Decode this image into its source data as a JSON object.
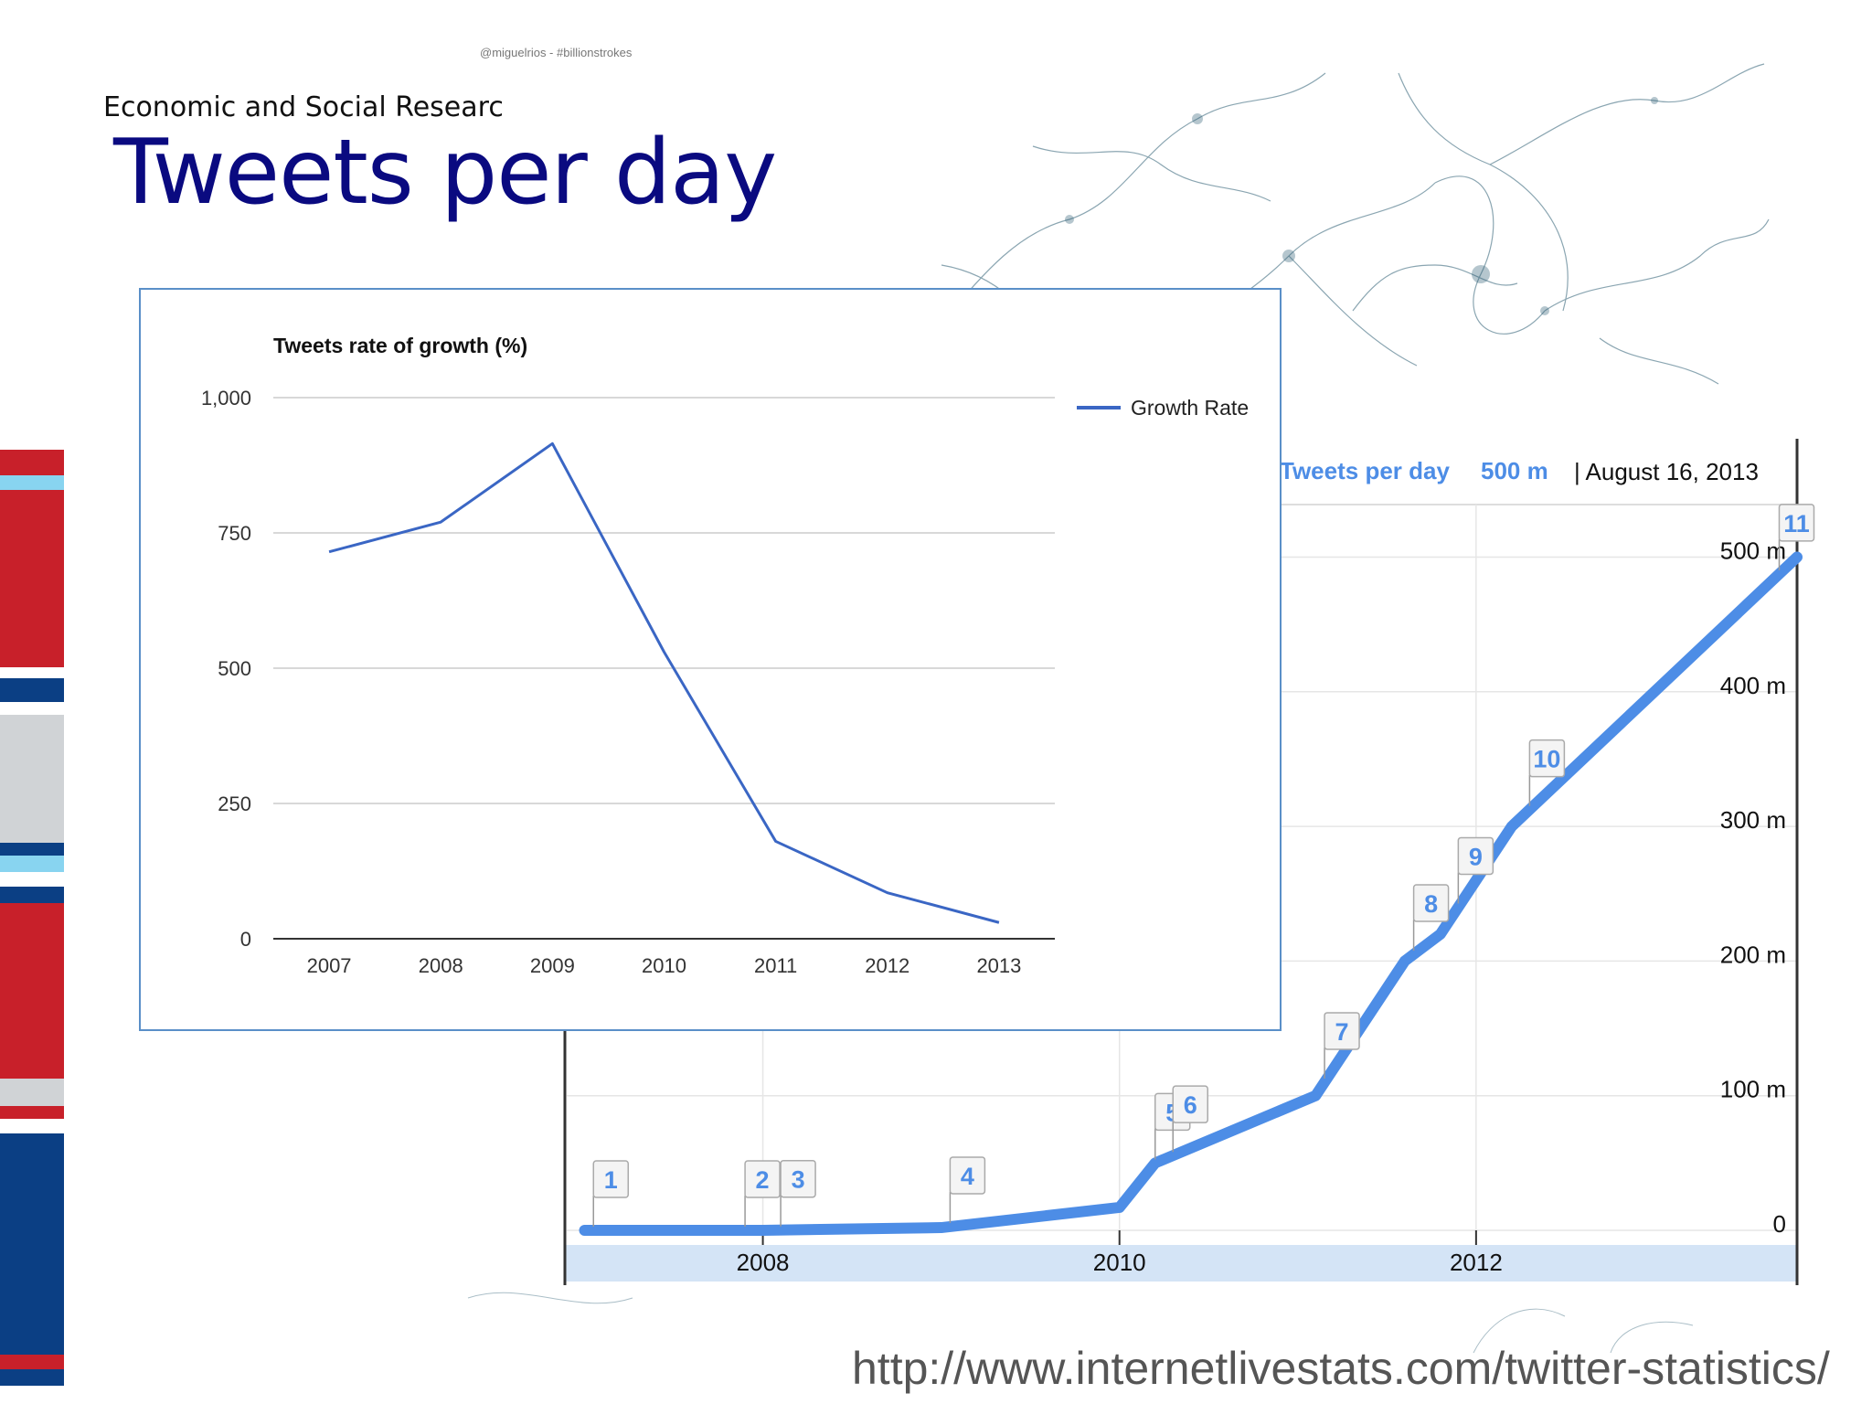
{
  "slide": {
    "credit": "@miguelrios - #billionstrokes",
    "org_text": "Economic and Social Researc",
    "title": "Tweets per day",
    "source_url": "http://www.internetlivestats.com/twitter-statistics/"
  },
  "colors": {
    "title": "#0a0a80",
    "growth_line": "#3a66c4",
    "daily_line": "#4d8de6",
    "band": "#d4e4f6",
    "flag_text": "#4d8de6",
    "stripe_red": "#c8202a",
    "stripe_blue": "#0b3f84",
    "stripe_light": "#88d4f0",
    "stripe_grey": "#d0d3d6",
    "map": "#2b5d72"
  },
  "chart_data": [
    {
      "type": "line",
      "title": "Tweets rate of growth (%)",
      "categories": [
        "2007",
        "2008",
        "2009",
        "2010",
        "2011",
        "2012",
        "2013"
      ],
      "series": [
        {
          "name": "Growth Rate",
          "values": [
            715,
            770,
            915,
            530,
            180,
            85,
            30
          ]
        }
      ],
      "yticks": [
        "0",
        "250",
        "500",
        "750",
        "1,000"
      ],
      "ylim": [
        0,
        1000
      ],
      "grid": true,
      "legend_position": "right"
    },
    {
      "type": "area",
      "header": {
        "title": "Tweets per day",
        "value": "500 m",
        "date": "| August 16, 2013"
      },
      "x": [
        2007.0,
        2008.0,
        2009.0,
        2010.0,
        2010.2,
        2011.1,
        2011.6,
        2011.8,
        2012.2,
        2013.8
      ],
      "values": [
        0,
        0,
        2,
        17,
        50,
        100,
        200,
        220,
        300,
        500
      ],
      "unit": "m",
      "xlim": [
        2006.9,
        2013.8
      ],
      "ylim": [
        0,
        520
      ],
      "xticks": [
        "2008",
        "2010",
        "2012"
      ],
      "yticks": [
        "0",
        "100 m",
        "200 m",
        "300 m",
        "400 m",
        "500 m"
      ],
      "markers": [
        {
          "label": "1",
          "x": 2007.05
        },
        {
          "label": "2",
          "x": 2007.9
        },
        {
          "label": "3",
          "x": 2008.1
        },
        {
          "label": "4",
          "x": 2009.05
        },
        {
          "label": "5",
          "x": 2010.2
        },
        {
          "label": "6",
          "x": 2010.3
        },
        {
          "label": "7",
          "x": 2011.15
        },
        {
          "label": "8",
          "x": 2011.65
        },
        {
          "label": "9",
          "x": 2011.9
        },
        {
          "label": "10",
          "x": 2012.3
        },
        {
          "label": "11",
          "x": 2013.7
        }
      ],
      "grid": true
    }
  ]
}
